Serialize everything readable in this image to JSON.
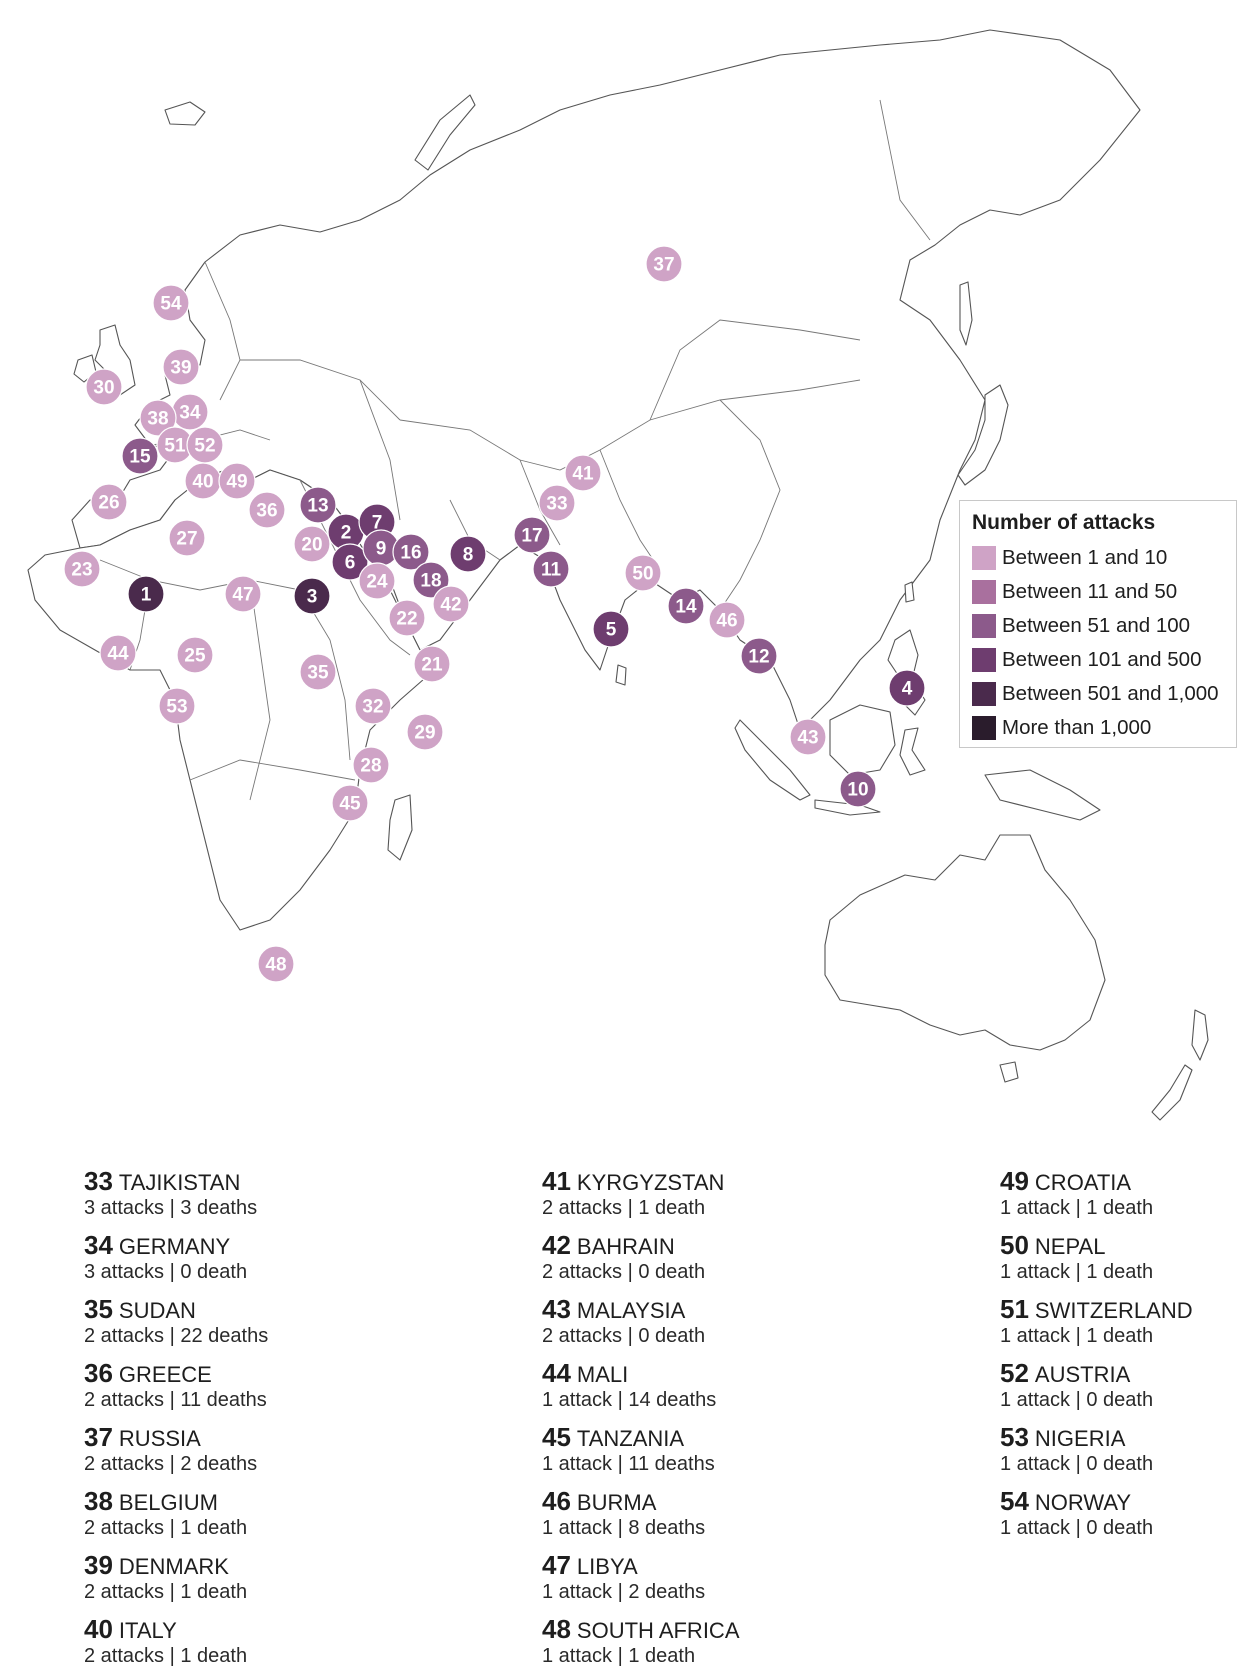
{
  "legend": {
    "title": "Number of attacks",
    "categories": [
      {
        "key": "c1",
        "label": "Between 1 and 10",
        "color": "#cfa3c6"
      },
      {
        "key": "c2",
        "label": "Between 11 and 50",
        "color": "#a9709e"
      },
      {
        "key": "c3",
        "label": "Between 51 and 100",
        "color": "#8c5a8b"
      },
      {
        "key": "c4",
        "label": "Between 101 and 500",
        "color": "#6e3d6f"
      },
      {
        "key": "c5",
        "label": "Between 501 and 1,000",
        "color": "#4a2a4c"
      },
      {
        "key": "c6",
        "label": "More than 1,000",
        "color": "#2a1c2c"
      }
    ]
  },
  "map_markers": [
    {
      "n": "1",
      "cat": "c5"
    },
    {
      "n": "2",
      "cat": "c4"
    },
    {
      "n": "3",
      "cat": "c5"
    },
    {
      "n": "4",
      "cat": "c4"
    },
    {
      "n": "5",
      "cat": "c4"
    },
    {
      "n": "6",
      "cat": "c4"
    },
    {
      "n": "7",
      "cat": "c4"
    },
    {
      "n": "8",
      "cat": "c4"
    },
    {
      "n": "9",
      "cat": "c3"
    },
    {
      "n": "10",
      "cat": "c3"
    },
    {
      "n": "11",
      "cat": "c3"
    },
    {
      "n": "12",
      "cat": "c3"
    },
    {
      "n": "13",
      "cat": "c3"
    },
    {
      "n": "14",
      "cat": "c3"
    },
    {
      "n": "15",
      "cat": "c3"
    },
    {
      "n": "16",
      "cat": "c3"
    },
    {
      "n": "17",
      "cat": "c3"
    },
    {
      "n": "18",
      "cat": "c3"
    },
    {
      "n": "20",
      "cat": "c1"
    },
    {
      "n": "21",
      "cat": "c1"
    },
    {
      "n": "22",
      "cat": "c1"
    },
    {
      "n": "23",
      "cat": "c1"
    },
    {
      "n": "24",
      "cat": "c1"
    },
    {
      "n": "25",
      "cat": "c1"
    },
    {
      "n": "26",
      "cat": "c1"
    },
    {
      "n": "27",
      "cat": "c1"
    },
    {
      "n": "28",
      "cat": "c1"
    },
    {
      "n": "29",
      "cat": "c1"
    },
    {
      "n": "30",
      "cat": "c1"
    },
    {
      "n": "32",
      "cat": "c1"
    },
    {
      "n": "33",
      "cat": "c1"
    },
    {
      "n": "34",
      "cat": "c1"
    },
    {
      "n": "35",
      "cat": "c1"
    },
    {
      "n": "36",
      "cat": "c1"
    },
    {
      "n": "37",
      "cat": "c1"
    },
    {
      "n": "38",
      "cat": "c1"
    },
    {
      "n": "39",
      "cat": "c1"
    },
    {
      "n": "40",
      "cat": "c1"
    },
    {
      "n": "41",
      "cat": "c1"
    },
    {
      "n": "42",
      "cat": "c1"
    },
    {
      "n": "43",
      "cat": "c1"
    },
    {
      "n": "44",
      "cat": "c1"
    },
    {
      "n": "45",
      "cat": "c1"
    },
    {
      "n": "46",
      "cat": "c1"
    },
    {
      "n": "47",
      "cat": "c1"
    },
    {
      "n": "48",
      "cat": "c1"
    },
    {
      "n": "49",
      "cat": "c1"
    },
    {
      "n": "50",
      "cat": "c1"
    },
    {
      "n": "51",
      "cat": "c1"
    },
    {
      "n": "52",
      "cat": "c1"
    },
    {
      "n": "53",
      "cat": "c1"
    },
    {
      "n": "54",
      "cat": "c1"
    }
  ],
  "country_list": {
    "columns": [
      [
        {
          "n": "33",
          "name": "TAJIKISTAN",
          "stats": "3 attacks | 3 deaths"
        },
        {
          "n": "34",
          "name": "GERMANY",
          "stats": "3 attacks | 0 death"
        },
        {
          "n": "35",
          "name": "SUDAN",
          "stats": "2 attacks | 22 deaths"
        },
        {
          "n": "36",
          "name": "GREECE",
          "stats": "2 attacks | 11 deaths"
        },
        {
          "n": "37",
          "name": "RUSSIA",
          "stats": "2 attacks | 2 deaths"
        },
        {
          "n": "38",
          "name": "BELGIUM",
          "stats": "2 attacks | 1 death"
        },
        {
          "n": "39",
          "name": "DENMARK",
          "stats": "2 attacks | 1 death"
        },
        {
          "n": "40",
          "name": "ITALY",
          "stats": "2 attacks | 1 death"
        }
      ],
      [
        {
          "n": "41",
          "name": "KYRGYZSTAN",
          "stats": "2 attacks | 1 death"
        },
        {
          "n": "42",
          "name": "BAHRAIN",
          "stats": "2 attacks | 0 death"
        },
        {
          "n": "43",
          "name": "MALAYSIA",
          "stats": "2 attacks | 0 death"
        },
        {
          "n": "44",
          "name": "MALI",
          "stats": "1 attack | 14 deaths"
        },
        {
          "n": "45",
          "name": "TANZANIA",
          "stats": "1 attack | 11 deaths"
        },
        {
          "n": "46",
          "name": "BURMA",
          "stats": "1 attack | 8 deaths"
        },
        {
          "n": "47",
          "name": "LIBYA",
          "stats": "1 attack | 2 deaths"
        },
        {
          "n": "48",
          "name": "SOUTH AFRICA",
          "stats": "1 attack | 1 death"
        }
      ],
      [
        {
          "n": "49",
          "name": "CROATIA",
          "stats": "1 attack | 1 death"
        },
        {
          "n": "50",
          "name": "NEPAL",
          "stats": "1 attack | 1 death"
        },
        {
          "n": "51",
          "name": "SWITZERLAND",
          "stats": "1 attack | 1 death"
        },
        {
          "n": "52",
          "name": "AUSTRIA",
          "stats": "1 attack | 0 death"
        },
        {
          "n": "53",
          "name": "NIGERIA",
          "stats": "1 attack | 0 death"
        },
        {
          "n": "54",
          "name": "NORWAY",
          "stats": "1 attack | 0 death"
        }
      ]
    ]
  }
}
